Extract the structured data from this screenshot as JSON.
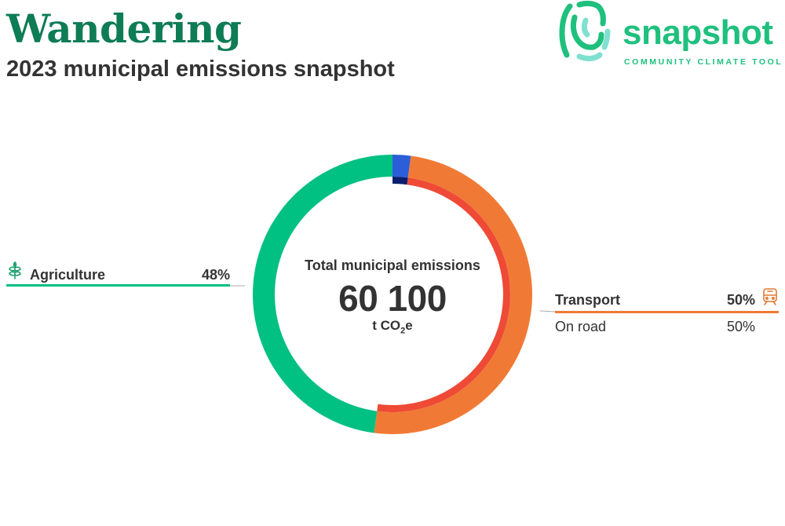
{
  "header": {
    "title": "Wandering",
    "subtitle": "2023 municipal emissions snapshot"
  },
  "logo": {
    "wordmark": "snapshot",
    "tagline": "COMMUNITY CLIMATE TOOL",
    "icon": "fingerprint-swirl-icon"
  },
  "colors": {
    "title": "#0e7c55",
    "brand": "#1fc07e",
    "brand_light": "#7fe0d0",
    "agriculture": "#00c082",
    "transport": "#f07a35",
    "on_road": "#ee4a36",
    "energy": "#2b5fd9",
    "energy_sub": "#0a1e6e",
    "leader": "#aaaaaa"
  },
  "chart_data": {
    "type": "pie",
    "style": "donut",
    "center_label": "Total municipal emissions",
    "total": "60 100",
    "total_value": 60100,
    "unit_prefix": "t CO",
    "unit_sub": "2",
    "unit_suffix": "e",
    "sectors": [
      {
        "name": "",
        "share": 0.021,
        "color": "#2b5fd9",
        "subsectors": [
          {
            "name": "",
            "share": 0.021,
            "color": "#0a1e6e"
          }
        ]
      },
      {
        "name": "Transport",
        "percent_label": "50%",
        "share": 0.5,
        "color": "#f07a35",
        "icon": "train-icon",
        "subsectors": [
          {
            "name": "On road",
            "percent_label": "50%",
            "share": 0.5,
            "color": "#ee4a36"
          }
        ]
      },
      {
        "name": "Agriculture",
        "percent_label": "48%",
        "share": 0.479,
        "color": "#00c082",
        "icon": "wheat-icon",
        "subsectors": []
      }
    ]
  }
}
